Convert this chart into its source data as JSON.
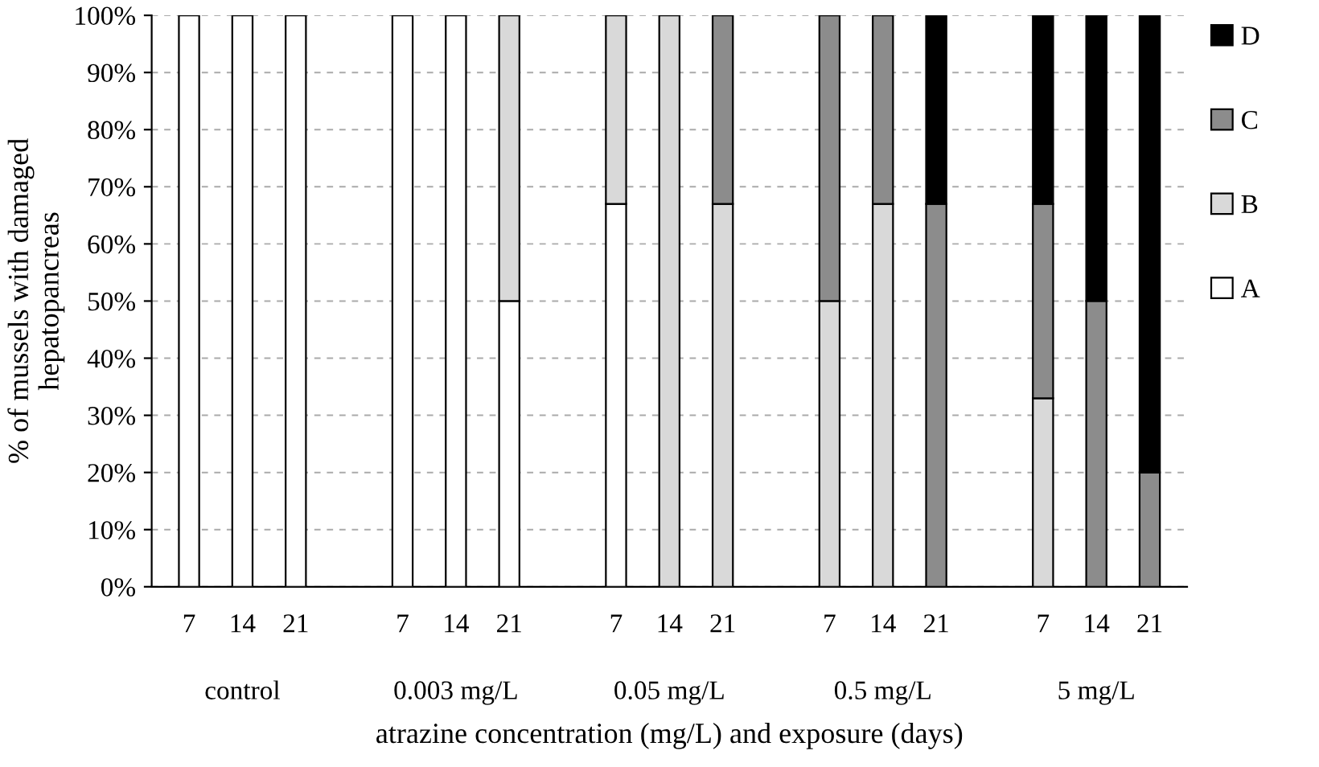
{
  "chart_data": {
    "type": "bar",
    "stacked": true,
    "xlabel": "atrazine concentration (mg/L) and exposure (days)",
    "ylabel": "% of mussels with damaged\nhepatopancreas",
    "categories": [
      "7",
      "14",
      "21",
      null,
      "7",
      "14",
      "21",
      null,
      "7",
      "14",
      "21",
      null,
      "7",
      "14",
      "21",
      null,
      "7",
      "14",
      "21"
    ],
    "series": [
      {
        "name": "A",
        "color": "#ffffff",
        "values": [
          100,
          100,
          100,
          null,
          100,
          100,
          50,
          null,
          67,
          null,
          null,
          null,
          null,
          null,
          null,
          null,
          null,
          null,
          null
        ]
      },
      {
        "name": "B",
        "color": "#d9d9d9",
        "values": [
          null,
          null,
          null,
          null,
          null,
          null,
          50,
          null,
          33,
          100,
          67,
          null,
          50,
          67,
          null,
          null,
          33,
          null,
          null
        ]
      },
      {
        "name": "C",
        "color": "#8c8c8c",
        "values": [
          null,
          null,
          null,
          null,
          null,
          null,
          null,
          null,
          null,
          null,
          33,
          null,
          50,
          33,
          67,
          null,
          34,
          50,
          20
        ]
      },
      {
        "name": "D",
        "color": "#000000",
        "values": [
          null,
          null,
          null,
          null,
          null,
          null,
          null,
          null,
          null,
          null,
          null,
          null,
          null,
          null,
          33,
          null,
          33,
          50,
          80
        ]
      }
    ],
    "annotations": [
      "control",
      "0.003 mg/L",
      "0.05 mg/L",
      "0.5 mg/L",
      "5 mg/L"
    ],
    "ylim": [
      0,
      100
    ],
    "yticks": [
      {
        "value": 0,
        "label": "0%"
      },
      {
        "value": 10,
        "label": "10%"
      },
      {
        "value": 20,
        "label": "20%"
      },
      {
        "value": 30,
        "label": "30%"
      },
      {
        "value": 40,
        "label": "40%"
      },
      {
        "value": 50,
        "label": "50%"
      },
      {
        "value": 60,
        "label": "60%"
      },
      {
        "value": 70,
        "label": "70%"
      },
      {
        "value": 80,
        "label": "80%"
      },
      {
        "value": 90,
        "label": "90%"
      },
      {
        "value": 100,
        "label": "100%"
      }
    ],
    "grid": "y",
    "legend": "right"
  }
}
